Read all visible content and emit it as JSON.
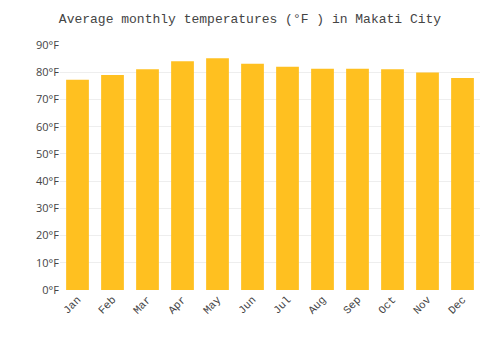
{
  "chart_data": {
    "type": "bar",
    "title": "Average monthly temperatures (°F ) in Makati City",
    "categories": [
      "Jan",
      "Feb",
      "Mar",
      "Apr",
      "May",
      "Jun",
      "Jul",
      "Aug",
      "Sep",
      "Oct",
      "Nov",
      "Dec"
    ],
    "values": [
      77.2,
      79.0,
      81.1,
      84.0,
      85.1,
      83.1,
      82.0,
      81.3,
      81.3,
      81.1,
      79.9,
      77.9
    ],
    "color": "#FFC020",
    "ylim": [
      0,
      90
    ],
    "yticks": [
      {
        "value": 0,
        "label": "0°F"
      },
      {
        "value": 10,
        "label": "10°F"
      },
      {
        "value": 20,
        "label": "20°F"
      },
      {
        "value": 30,
        "label": "30°F"
      },
      {
        "value": 40,
        "label": "40°F"
      },
      {
        "value": 50,
        "label": "50°F"
      },
      {
        "value": 60,
        "label": "60°F"
      },
      {
        "value": 70,
        "label": "70°F"
      },
      {
        "value": 80,
        "label": "80°F"
      },
      {
        "value": 90,
        "label": "90°F"
      }
    ],
    "grid": true
  }
}
